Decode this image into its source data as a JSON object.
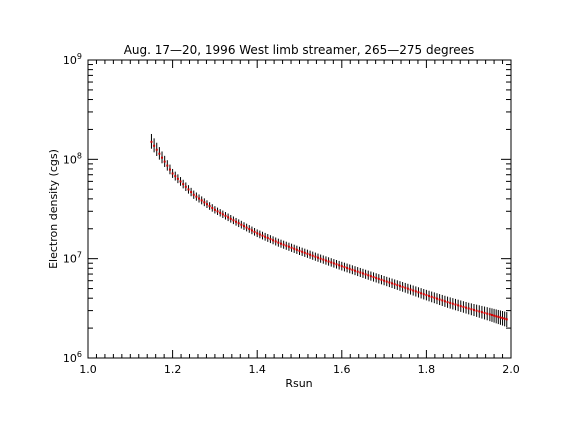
{
  "chart_data": {
    "type": "scatter",
    "title": "Aug. 17—20, 1996 West limb streamer, 265—275 degrees",
    "xlabel": "Rsun",
    "ylabel": "Electron density (cgs)",
    "xlim": [
      1.0,
      2.0
    ],
    "ylim": [
      1000000,
      1000000000
    ],
    "yscale": "log",
    "grid": false,
    "x_ticks": [
      {
        "value": 1.0,
        "label": "1.0"
      },
      {
        "value": 1.2,
        "label": "1.2"
      },
      {
        "value": 1.4,
        "label": "1.4"
      },
      {
        "value": 1.6,
        "label": "1.6"
      },
      {
        "value": 1.8,
        "label": "1.8"
      },
      {
        "value": 2.0,
        "label": "2.0"
      }
    ],
    "y_ticks": [
      {
        "value": 1000000,
        "base": "10",
        "exp": "6"
      },
      {
        "value": 10000000,
        "base": "10",
        "exp": "7"
      },
      {
        "value": 100000000,
        "base": "10",
        "exp": "8"
      },
      {
        "value": 1000000000,
        "base": "10",
        "exp": "9"
      }
    ],
    "series_color": "#cc0000",
    "errorbar_color": "#000000",
    "points": [
      {
        "x": 1.15,
        "y": 150000000,
        "lo": 128000000,
        "hi": 180000000
      },
      {
        "x": 1.2,
        "y": 72000000,
        "lo": 65000000,
        "hi": 80000000
      },
      {
        "x": 1.25,
        "y": 44000000,
        "lo": 40000000,
        "hi": 48500000
      },
      {
        "x": 1.3,
        "y": 31000000,
        "lo": 28500000,
        "hi": 33800000
      },
      {
        "x": 1.35,
        "y": 23500000,
        "lo": 21500000,
        "hi": 25700000
      },
      {
        "x": 1.4,
        "y": 18000000,
        "lo": 16500000,
        "hi": 19700000
      },
      {
        "x": 1.45,
        "y": 14500000,
        "lo": 13200000,
        "hi": 15900000
      },
      {
        "x": 1.5,
        "y": 12000000,
        "lo": 10900000,
        "hi": 13200000
      },
      {
        "x": 1.55,
        "y": 10000000,
        "lo": 9100000,
        "hi": 11000000
      },
      {
        "x": 1.6,
        "y": 8400000,
        "lo": 7600000,
        "hi": 9300000
      },
      {
        "x": 1.65,
        "y": 7100000,
        "lo": 6400000,
        "hi": 7900000
      },
      {
        "x": 1.7,
        "y": 6000000,
        "lo": 5400000,
        "hi": 6700000
      },
      {
        "x": 1.75,
        "y": 5100000,
        "lo": 4550000,
        "hi": 5700000
      },
      {
        "x": 1.8,
        "y": 4300000,
        "lo": 3800000,
        "hi": 4850000
      },
      {
        "x": 1.85,
        "y": 3650000,
        "lo": 3200000,
        "hi": 4150000
      },
      {
        "x": 1.9,
        "y": 3150000,
        "lo": 2750000,
        "hi": 3600000
      },
      {
        "x": 1.95,
        "y": 2750000,
        "lo": 2350000,
        "hi": 3200000
      },
      {
        "x": 1.99,
        "y": 2450000,
        "lo": 2050000,
        "hi": 2900000
      }
    ]
  }
}
